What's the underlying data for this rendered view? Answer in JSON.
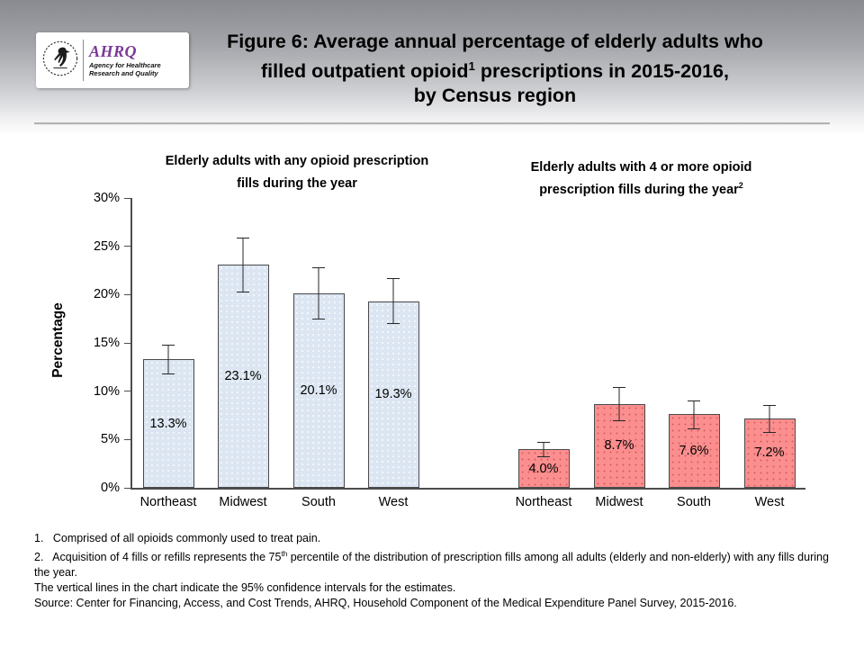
{
  "header": {
    "logo": {
      "org_abbr": "AHRQ",
      "org_name_line1": "Agency for Healthcare",
      "org_name_line2": "Research and Quality",
      "brand_color": "#7b3997",
      "emblem": "hhs-eagle-icon"
    },
    "title": {
      "line1": "Figure 6: Average annual percentage of elderly adults who",
      "line2_pre": "filled outpatient opioid",
      "line2_sup": "1",
      "line2_post": " prescriptions in 2015-2016,",
      "line3": "by Census region"
    }
  },
  "chart_data": {
    "type": "bar",
    "ylabel": "Percentage",
    "ylim": [
      0,
      30
    ],
    "yticks": [
      "0%",
      "5%",
      "10%",
      "15%",
      "20%",
      "25%",
      "30%"
    ],
    "grid": false,
    "categories": [
      "Northeast",
      "Midwest",
      "South",
      "West"
    ],
    "error_bar_meaning": "95% confidence intervals",
    "groups": [
      {
        "title_line1": "Elderly adults with any opioid prescription",
        "title_line2": "fills during the year",
        "title_sup": "",
        "bar_color": "#dce6f2",
        "values": [
          13.3,
          23.1,
          20.1,
          19.3
        ],
        "labels": [
          "13.3%",
          "23.1%",
          "20.1%",
          "19.3%"
        ],
        "ci_low": [
          11.7,
          20.2,
          17.4,
          17.0
        ],
        "ci_high": [
          14.9,
          26.0,
          22.9,
          21.8
        ]
      },
      {
        "title_line1": "Elderly adults with 4 or more opioid",
        "title_line2": "prescription fills during the year",
        "title_sup": "2",
        "bar_color": "#fb8e8e",
        "values": [
          4.0,
          8.7,
          7.6,
          7.2
        ],
        "labels": [
          "4.0%",
          "8.7%",
          "7.6%",
          "7.2%"
        ],
        "ci_low": [
          3.2,
          6.9,
          6.1,
          5.7
        ],
        "ci_high": [
          4.8,
          10.5,
          9.1,
          8.7
        ]
      }
    ]
  },
  "footnotes": {
    "note1": "1.   Comprised of all opioids commonly used to treat pain.",
    "note2_pre": "2.   Acquisition of 4 fills or refills represents the 75",
    "note2_sup": "th",
    "note2_post": " percentile of the distribution of prescription fills among all adults (elderly and non-elderly) with any fills during the year.",
    "note3": "The vertical lines in the chart indicate the 95% confidence intervals for the estimates.",
    "note4": "Source: Center for Financing, Access, and Cost Trends, AHRQ, Household Component of the Medical Expenditure Panel Survey, 2015-2016."
  }
}
